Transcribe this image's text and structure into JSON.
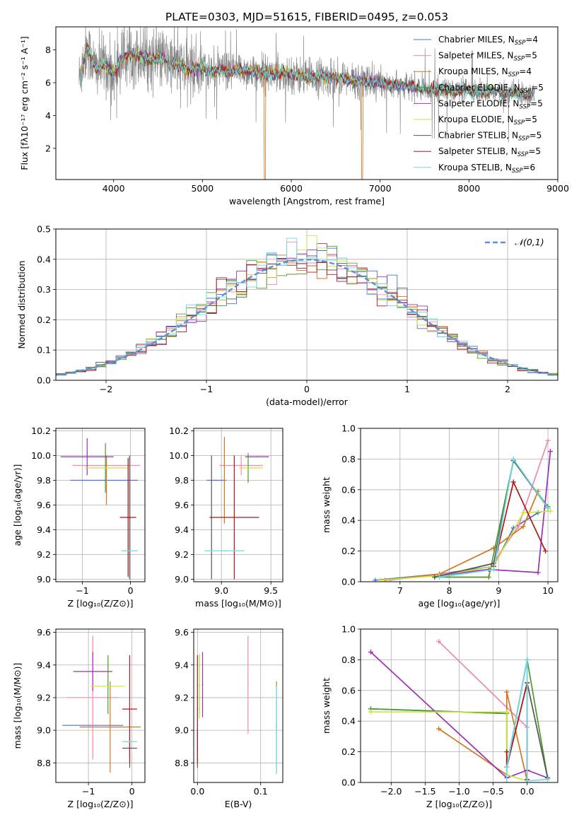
{
  "figure": {
    "title": "PLATE=0303, MJD=51615, FIBERID=0495, z=0.053"
  },
  "models": [
    {
      "name": "Chabrier MILES",
      "nssp": "4",
      "color": "#4a6fd6"
    },
    {
      "name": "Salpeter MILES",
      "nssp": "5",
      "color": "#ee88b0"
    },
    {
      "name": "Kroupa MILES",
      "nssp": "4",
      "color": "#d4761c"
    },
    {
      "name": "Chabrier ELODIE",
      "nssp": "5",
      "color": "#4c9a2a"
    },
    {
      "name": "Salpeter ELODIE",
      "nssp": "5",
      "color": "#9b30b8"
    },
    {
      "name": "Kroupa ELODIE",
      "nssp": "5",
      "color": "#c8e63c"
    },
    {
      "name": "Chabrier STELIB",
      "nssp": "5",
      "color": "#555555"
    },
    {
      "name": "Salpeter STELIB",
      "nssp": "5",
      "color": "#b01818"
    },
    {
      "name": "Kroupa STELIB",
      "nssp": "6",
      "color": "#6fd8e6"
    }
  ],
  "chart_data": [
    {
      "id": "spectrum",
      "type": "line",
      "xlabel": "wavelength [Angstrom, rest frame]",
      "ylabel": "Flux [fλ10⁻¹⁷ erg cm⁻² s⁻¹ A⁻¹]",
      "xlim": [
        3350,
        9000
      ],
      "ylim": [
        0.1,
        9.4
      ],
      "xticks": [
        4000,
        5000,
        6000,
        7000,
        8000,
        9000
      ],
      "yticks": [
        2,
        4,
        6,
        8
      ],
      "legend": "upper-right",
      "data_color": "#888888",
      "x_data": [
        3600,
        3700,
        3800,
        3900,
        4000,
        4100,
        4200,
        4300,
        4400,
        4500,
        4600,
        4700,
        4800,
        4900,
        5000,
        5100,
        5200,
        5300,
        5400,
        5500,
        5600,
        5700,
        5800,
        5900,
        6000,
        6100,
        6200,
        6300,
        6400,
        6500,
        6600,
        6700,
        6800,
        6900,
        7000,
        7100,
        7200,
        7300,
        7400,
        7500,
        7600,
        7700,
        7800,
        7900,
        8000,
        8100,
        8200,
        8300,
        8400,
        8500,
        8600,
        8700
      ],
      "y_data": [
        6.0,
        8.2,
        6.8,
        7.2,
        6.5,
        7.5,
        7.8,
        7.6,
        7.4,
        7.5,
        7.3,
        7.1,
        6.9,
        6.8,
        6.9,
        6.7,
        6.8,
        6.6,
        6.8,
        6.7,
        6.6,
        6.6,
        6.5,
        6.6,
        6.5,
        6.4,
        6.3,
        6.4,
        6.3,
        6.3,
        6.2,
        6.1,
        6.1,
        6.0,
        6.0,
        5.9,
        5.9,
        5.8,
        5.7,
        5.6,
        5.6,
        5.6,
        5.5,
        5.5,
        5.5,
        5.4,
        5.4,
        5.5,
        5.3,
        5.4,
        5.3,
        5.3
      ]
    },
    {
      "id": "residuals",
      "type": "line",
      "xlabel": "(data-model)/error",
      "ylabel": "Normed distribution",
      "xlim": [
        -2.5,
        2.5
      ],
      "ylim": [
        0,
        0.5
      ],
      "xticks": [
        -2,
        -1,
        0,
        1,
        2
      ],
      "yticks": [
        0.0,
        0.1,
        0.2,
        0.3,
        0.4,
        0.5
      ],
      "legend": "upper-right",
      "reference_curve": {
        "label": "𝒩(0,1)",
        "color": "#5b8fdc",
        "mu": 0,
        "sigma": 1
      }
    },
    {
      "id": "age_vs_Z",
      "type": "scatter",
      "xlabel": "Z [log₁₀(Z/Z⊙)]",
      "ylabel": "age  [log₁₀(age/yr)]",
      "xlim": [
        -1.55,
        0.3
      ],
      "ylim": [
        8.98,
        10.22
      ],
      "xticks": [
        -1,
        0
      ],
      "yticks": [
        9.0,
        9.2,
        9.4,
        9.6,
        9.8,
        10.0,
        10.2
      ],
      "points": [
        {
          "model": 0,
          "x": -0.55,
          "xerr": 0.7,
          "y": 9.8,
          "yerr": 0.0
        },
        {
          "model": 1,
          "x": -0.5,
          "xerr": 0.7,
          "y": 9.92,
          "yerr": 0.0
        },
        {
          "model": 2,
          "x": -0.5,
          "xerr": 0.0,
          "y": 9.8,
          "yerr": 0.2
        },
        {
          "model": 3,
          "x": -0.52,
          "xerr": 0.0,
          "y": 9.9,
          "yerr": 0.2
        },
        {
          "model": 4,
          "x": -0.9,
          "xerr": 0.55,
          "y": 9.99,
          "yerr": 0.15
        },
        {
          "model": 5,
          "x": -0.5,
          "xerr": 0.45,
          "y": 9.9,
          "yerr": 0.0
        },
        {
          "model": 6,
          "x": -0.02,
          "xerr": 0.0,
          "y": 9.5,
          "yerr": 0.5
        },
        {
          "model": 7,
          "x": -0.05,
          "xerr": 0.17,
          "y": 9.5,
          "yerr": 0.48
        },
        {
          "model": 8,
          "x": -0.02,
          "xerr": 0.17,
          "y": 9.23,
          "yerr": 0.0
        }
      ]
    },
    {
      "id": "age_vs_mass",
      "type": "scatter",
      "xlabel": "mass [log₁₀(M/M⊙)]",
      "ylabel": "",
      "xlim": [
        8.72,
        9.62
      ],
      "ylim": [
        8.98,
        10.22
      ],
      "xticks": [
        9.0,
        9.5
      ],
      "yticks": [
        9.0,
        9.2,
        9.4,
        9.6,
        9.8,
        10.0,
        10.2
      ],
      "points": [
        {
          "model": 0,
          "x": 8.95,
          "xerr": 0.1,
          "y": 9.8,
          "yerr": 0.0
        },
        {
          "model": 1,
          "x": 9.2,
          "xerr": 0.22,
          "y": 9.92,
          "yerr": 0.08
        },
        {
          "model": 2,
          "x": 9.03,
          "xerr": 0.0,
          "y": 9.8,
          "yerr": 0.35
        },
        {
          "model": 3,
          "x": 9.27,
          "xerr": 0.0,
          "y": 9.9,
          "yerr": 0.12
        },
        {
          "model": 4,
          "x": 9.36,
          "xerr": 0.12,
          "y": 9.99,
          "yerr": 0.0
        },
        {
          "model": 5,
          "x": 9.3,
          "xerr": 0.12,
          "y": 9.9,
          "yerr": 0.0
        },
        {
          "model": 6,
          "x": 8.9,
          "xerr": 0.0,
          "y": 9.5,
          "yerr": 0.5
        },
        {
          "model": 7,
          "x": 9.13,
          "xerr": 0.25,
          "y": 9.5,
          "yerr": 0.5
        },
        {
          "model": 8,
          "x": 9.03,
          "xerr": 0.2,
          "y": 9.23,
          "yerr": 0.0
        }
      ]
    },
    {
      "id": "weight_vs_age",
      "type": "line",
      "xlabel": "age  [log₁₀(age/yr)]",
      "ylabel": "mass weight",
      "xlim": [
        6.2,
        10.2
      ],
      "ylim": [
        0,
        1
      ],
      "xticks": [
        7,
        8,
        9,
        10
      ],
      "yticks": [
        0.0,
        0.2,
        0.4,
        0.6,
        0.8,
        1.0
      ],
      "series": [
        {
          "model": 0,
          "x": [
            6.5,
            7.8,
            8.9,
            9.3,
            9.8
          ],
          "y": [
            0.01,
            0.05,
            0.1,
            0.35,
            0.45
          ]
        },
        {
          "model": 1,
          "x": [
            6.8,
            7.8,
            8.8,
            9.4,
            10.0
          ],
          "y": [
            0.01,
            0.05,
            0.08,
            0.36,
            0.92
          ]
        },
        {
          "model": 2,
          "x": [
            6.7,
            7.8,
            8.9,
            9.5,
            9.8
          ],
          "y": [
            0.01,
            0.05,
            0.22,
            0.36,
            0.59
          ]
        },
        {
          "model": 3,
          "x": [
            7.7,
            8.8,
            9.3,
            10.0
          ],
          "y": [
            0.03,
            0.03,
            0.79,
            0.49
          ]
        },
        {
          "model": 4,
          "x": [
            7.8,
            8.8,
            9.8,
            10.05
          ],
          "y": [
            0.04,
            0.08,
            0.06,
            0.85
          ]
        },
        {
          "model": 5,
          "x": [
            6.6,
            7.8,
            8.9,
            9.5,
            10.05
          ],
          "y": [
            0.01,
            0.04,
            0.1,
            0.45,
            0.46
          ]
        },
        {
          "model": 6,
          "x": [
            7.7,
            8.9,
            9.3,
            10.0
          ],
          "y": [
            0.03,
            0.12,
            0.79,
            0.48
          ]
        },
        {
          "model": 7,
          "x": [
            8.9,
            9.3,
            9.95
          ],
          "y": [
            0.1,
            0.65,
            0.2
          ]
        },
        {
          "model": 8,
          "x": [
            7.8,
            8.9,
            9.3,
            10.0
          ],
          "y": [
            0.03,
            0.08,
            0.8,
            0.48
          ]
        }
      ]
    },
    {
      "id": "mass_vs_Z",
      "type": "scatter",
      "xlabel": "Z [log₁₀(Z/Z⊙)]",
      "ylabel": "mass [log₁₀(M/M⊙)]",
      "xlim": [
        -1.75,
        0.3
      ],
      "ylim": [
        8.68,
        9.62
      ],
      "xticks": [
        -1,
        0
      ],
      "yticks": [
        8.8,
        9.0,
        9.2,
        9.4,
        9.6
      ],
      "points": [
        {
          "model": 0,
          "x": -0.9,
          "xerr": 0.7,
          "y": 9.03,
          "yerr": 0.0
        },
        {
          "model": 1,
          "x": -0.9,
          "xerr": 0.6,
          "y": 9.2,
          "yerr": 0.38
        },
        {
          "model": 2,
          "x": -0.5,
          "xerr": 0.7,
          "y": 9.02,
          "yerr": 0.28
        },
        {
          "model": 3,
          "x": -0.55,
          "xerr": 0.0,
          "y": 9.28,
          "yerr": 0.18
        },
        {
          "model": 4,
          "x": -0.9,
          "xerr": 0.45,
          "y": 9.36,
          "yerr": 0.12
        },
        {
          "model": 5,
          "x": -0.55,
          "xerr": 0.4,
          "y": 9.27,
          "yerr": 0.0
        },
        {
          "model": 6,
          "x": -0.05,
          "xerr": 0.17,
          "y": 8.89,
          "yerr": 0.12
        },
        {
          "model": 7,
          "x": -0.05,
          "xerr": 0.17,
          "y": 9.13,
          "yerr": 0.33
        },
        {
          "model": 8,
          "x": -0.05,
          "xerr": 0.17,
          "y": 8.93,
          "yerr": 0.0
        }
      ]
    },
    {
      "id": "mass_vs_ebv",
      "type": "scatter",
      "xlabel": "E(B-V)",
      "ylabel": "",
      "xlim": [
        -0.006,
        0.135
      ],
      "ylim": [
        8.68,
        9.62
      ],
      "xticks": [
        0.0,
        0.1
      ],
      "yticks": [
        8.8,
        9.0,
        9.2,
        9.4,
        9.6
      ],
      "points": [
        {
          "model": 0,
          "x": 0.0,
          "xerr": 0.0,
          "y": 9.03,
          "yerr": 0.0
        },
        {
          "model": 1,
          "x": 0.08,
          "xerr": 0.0,
          "y": 9.28,
          "yerr": 0.3
        },
        {
          "model": 2,
          "x": 0.125,
          "xerr": 0.0,
          "y": 9.02,
          "yerr": 0.28
        },
        {
          "model": 3,
          "x": 0.003,
          "xerr": 0.0,
          "y": 9.28,
          "yerr": 0.18
        },
        {
          "model": 4,
          "x": 0.008,
          "xerr": 0.0,
          "y": 9.28,
          "yerr": 0.2
        },
        {
          "model": 5,
          "x": 0.003,
          "xerr": 0.0,
          "y": 9.27,
          "yerr": 0.2
        },
        {
          "model": 6,
          "x": 0.0,
          "xerr": 0.0,
          "y": 8.89,
          "yerr": 0.12
        },
        {
          "model": 7,
          "x": 0.0,
          "xerr": 0.0,
          "y": 9.13,
          "yerr": 0.33
        },
        {
          "model": 8,
          "x": 0.125,
          "xerr": 0.0,
          "y": 9.0,
          "yerr": 0.27
        }
      ]
    },
    {
      "id": "weight_vs_Z",
      "type": "line",
      "xlabel": "Z [log₁₀(Z/Z⊙)]",
      "ylabel": "mass weight",
      "xlim": [
        -2.45,
        0.45
      ],
      "ylim": [
        0,
        1
      ],
      "xticks": [
        -2.0,
        -1.5,
        -1.0,
        -0.5,
        0.0
      ],
      "yticks": [
        0.0,
        0.2,
        0.4,
        0.6,
        0.8,
        1.0
      ],
      "series": [
        {
          "model": 0,
          "x": [
            -2.3,
            -0.3,
            -0.3,
            0.0,
            0.0
          ],
          "y": [
            0.48,
            0.45,
            0.1,
            0.8,
            0.02
          ]
        },
        {
          "model": 1,
          "x": [
            -1.3,
            0.0,
            0.0
          ],
          "y": [
            0.92,
            0.36,
            0.01
          ]
        },
        {
          "model": 2,
          "x": [
            -1.3,
            -0.3,
            -0.3,
            0.0
          ],
          "y": [
            0.35,
            0.05,
            0.59,
            0.01
          ]
        },
        {
          "model": 3,
          "x": [
            -2.3,
            -0.3,
            -0.3,
            0.0,
            0.3
          ],
          "y": [
            0.48,
            0.45,
            0.1,
            0.8,
            0.03
          ]
        },
        {
          "model": 4,
          "x": [
            -2.3,
            -0.3,
            0.0,
            0.3
          ],
          "y": [
            0.85,
            0.03,
            0.08,
            0.03
          ]
        },
        {
          "model": 5,
          "x": [
            -2.3,
            -0.3,
            -0.3,
            0.0
          ],
          "y": [
            0.46,
            0.46,
            0.05,
            0.01
          ]
        },
        {
          "model": 6,
          "x": [
            -0.3,
            0.0,
            0.3
          ],
          "y": [
            0.1,
            0.65,
            0.03
          ]
        },
        {
          "model": 7,
          "x": [
            -0.3,
            -0.3,
            0.0,
            0.0
          ],
          "y": [
            0.2,
            0.1,
            0.65,
            0.02
          ]
        },
        {
          "model": 8,
          "x": [
            -0.3,
            -0.3,
            0.0,
            0.0,
            0.3
          ],
          "y": [
            0.0,
            0.1,
            0.8,
            0.01,
            0.02
          ]
        }
      ]
    }
  ]
}
